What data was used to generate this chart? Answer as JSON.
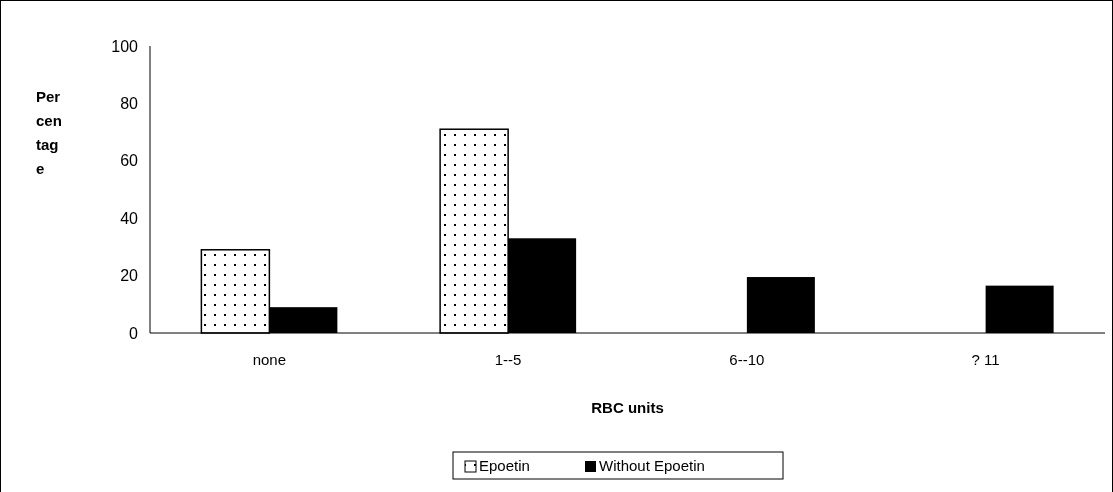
{
  "chart_data": {
    "type": "bar",
    "xlabel": "RBC units",
    "ylabel": "Percentage",
    "categories": [
      "none",
      "1--5",
      "6--10",
      "? 11"
    ],
    "series": [
      {
        "name": "Epoetin",
        "color": "#ffffff",
        "values": [
          29,
          71,
          0,
          0
        ]
      },
      {
        "name": "Without Epoetin",
        "color": "#000000",
        "values": [
          9,
          33,
          19.5,
          16.5
        ]
      }
    ],
    "ylim": [
      0,
      100
    ],
    "yticks": [
      0,
      20,
      40,
      60,
      80,
      100
    ],
    "legend": "bottom",
    "grid": false
  }
}
